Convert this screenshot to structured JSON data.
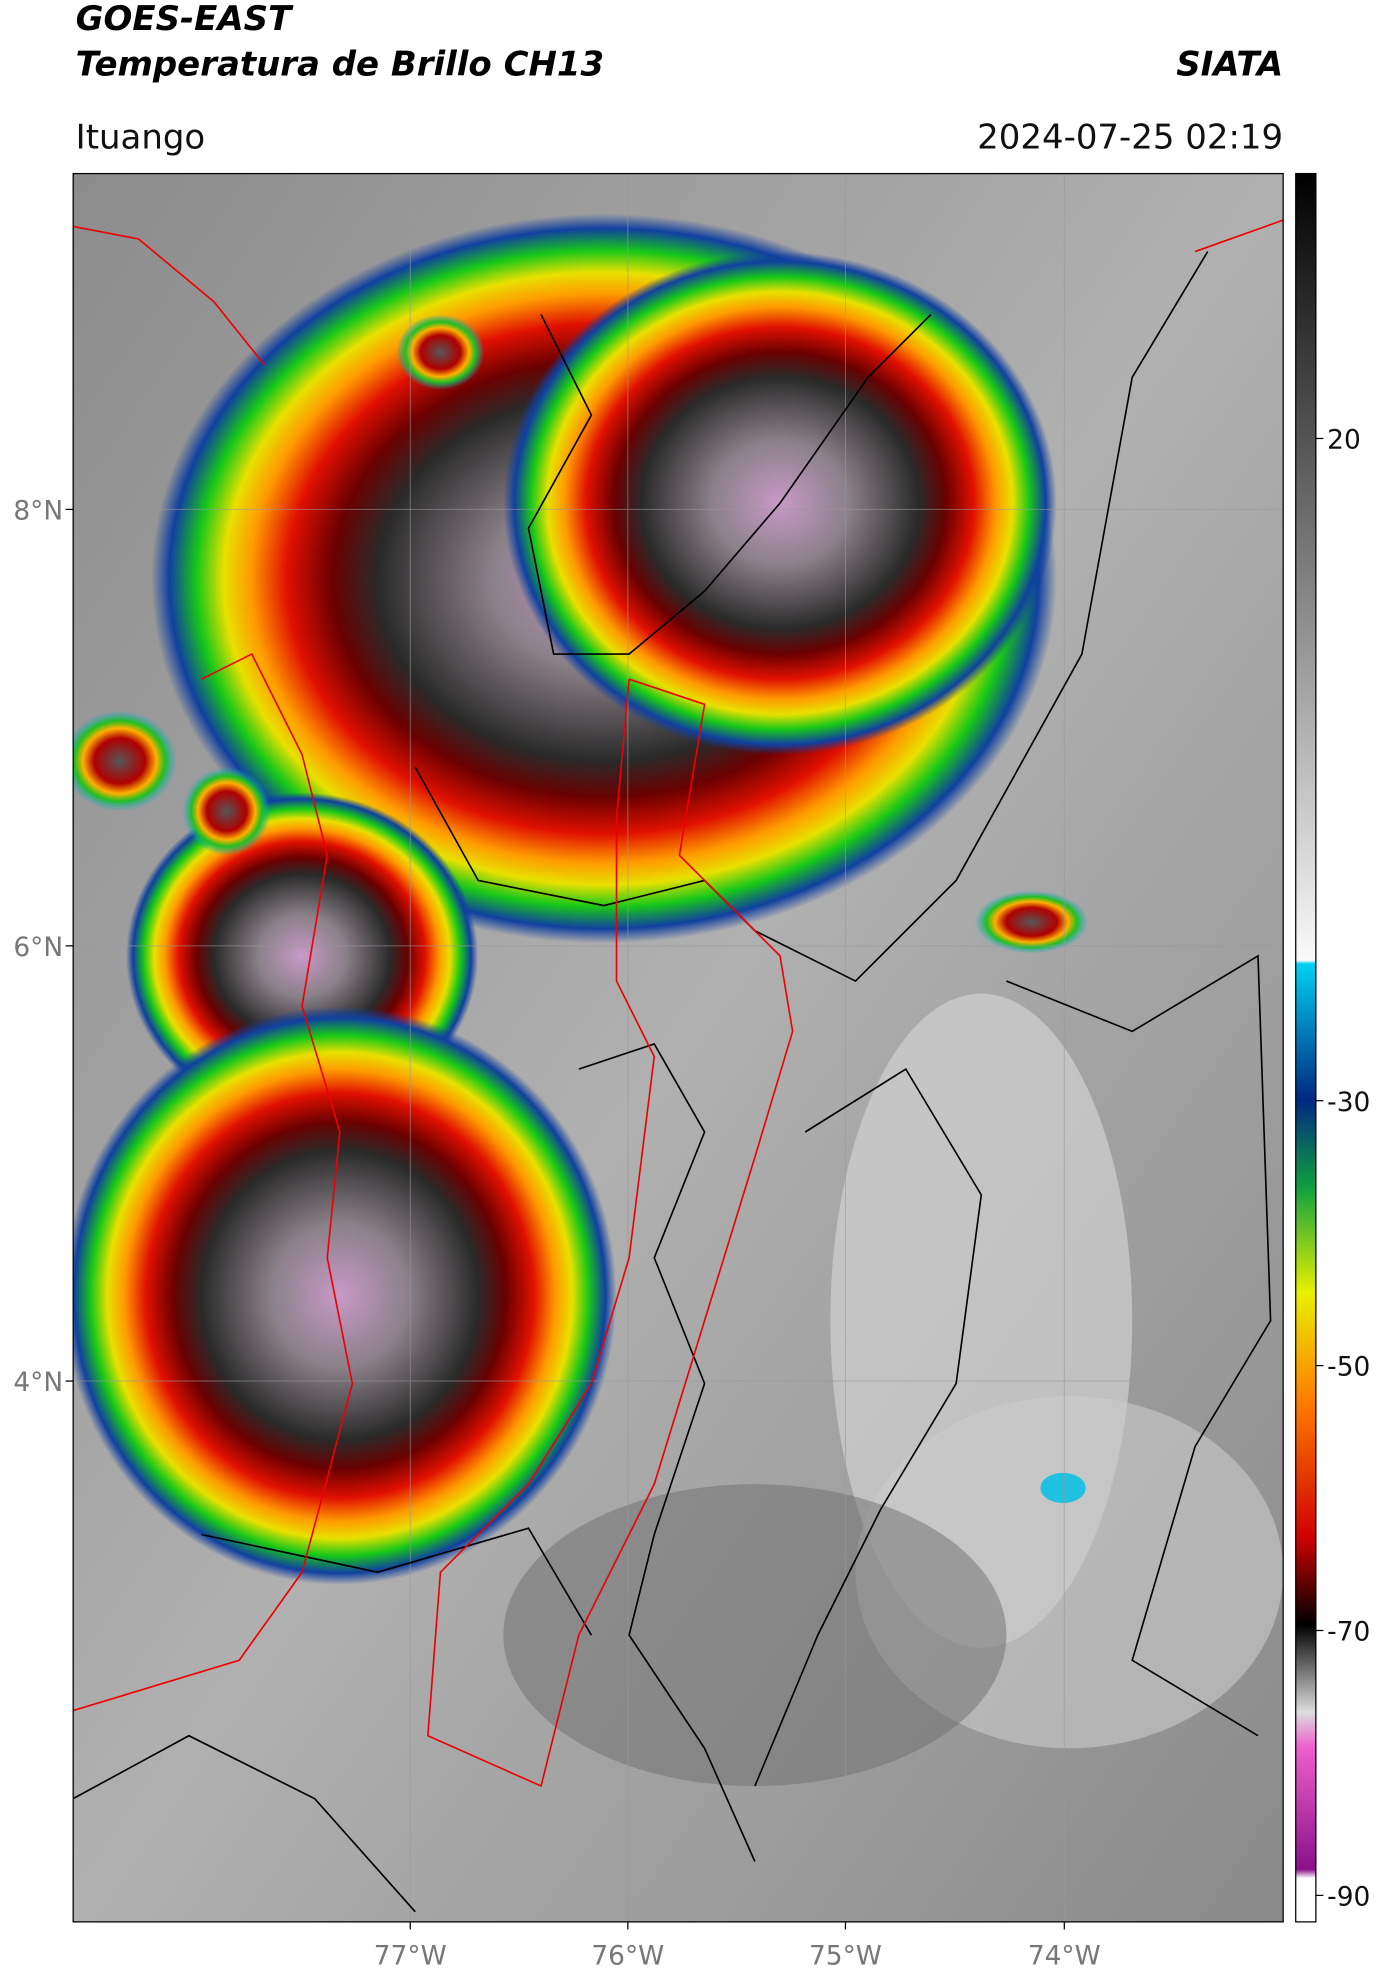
{
  "header": {
    "title": "GOES-EAST",
    "subtitle": "Temperatura de Brillo CH13",
    "org": "SIATA",
    "location": "Ituango",
    "datetime": "2024-07-25 02:19"
  },
  "map": {
    "lat_labels": [
      "8°N",
      "6°N",
      "4°N"
    ],
    "lon_labels": [
      "77°W",
      "76°W",
      "75°W",
      "74°W"
    ]
  },
  "colorbar": {
    "range": [
      40,
      -92
    ],
    "ticks": [
      20,
      -30,
      -50,
      -70,
      -90
    ]
  }
}
